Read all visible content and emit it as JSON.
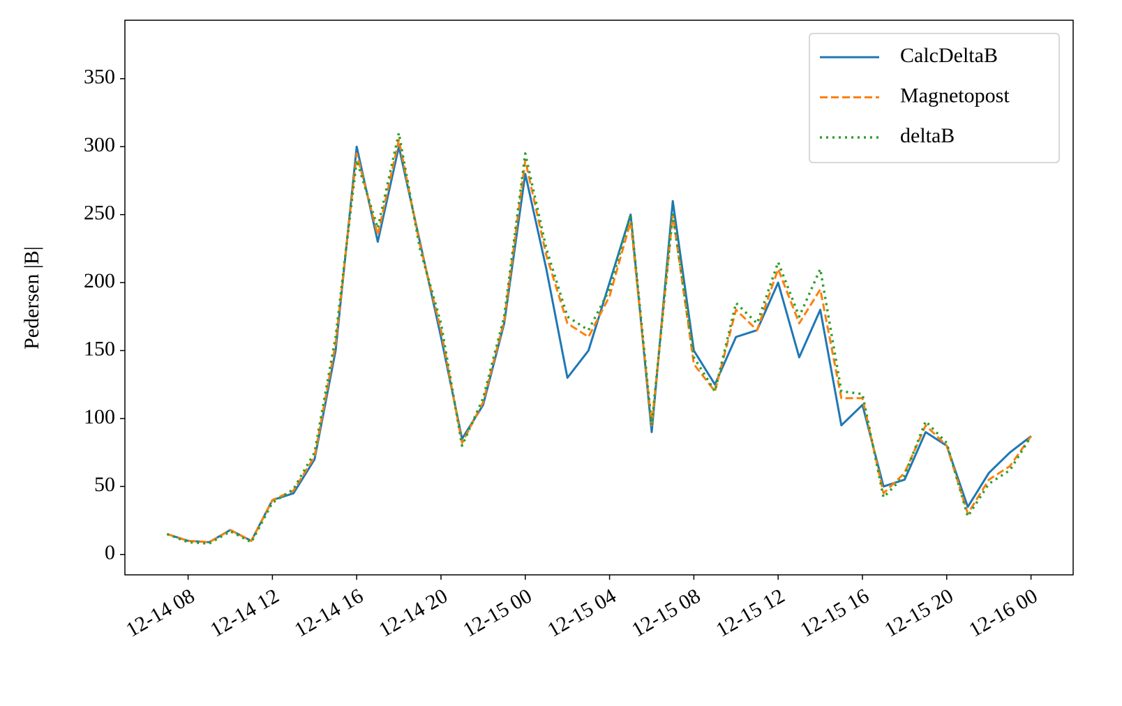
{
  "chart_data": {
    "type": "line",
    "ylabel": "Pedersen |B|",
    "x": [
      "12-14 07",
      "12-14 08",
      "12-14 09",
      "12-14 10",
      "12-14 11",
      "12-14 12",
      "12-14 13",
      "12-14 14",
      "12-14 15",
      "12-14 16",
      "12-14 17",
      "12-14 18",
      "12-14 19",
      "12-14 20",
      "12-14 21",
      "12-14 22",
      "12-14 23",
      "12-15 00",
      "12-15 01",
      "12-15 02",
      "12-15 03",
      "12-15 04",
      "12-15 05",
      "12-15 06",
      "12-15 07",
      "12-15 08",
      "12-15 09",
      "12-15 10",
      "12-15 11",
      "12-15 12",
      "12-15 13",
      "12-15 14",
      "12-15 15",
      "12-15 16",
      "12-15 17",
      "12-15 18",
      "12-15 19",
      "12-15 20",
      "12-15 21",
      "12-15 22",
      "12-15 23",
      "12-16 00"
    ],
    "series": [
      {
        "name": "CalcDeltaB",
        "color": "#1f77b4",
        "dash": "solid",
        "values": [
          15,
          10,
          9,
          18,
          10,
          40,
          45,
          70,
          150,
          300,
          230,
          300,
          230,
          160,
          85,
          110,
          170,
          280,
          210,
          130,
          150,
          200,
          250,
          90,
          260,
          150,
          125,
          160,
          165,
          200,
          145,
          180,
          95,
          110,
          50,
          55,
          90,
          80,
          35,
          60,
          75,
          87
        ]
      },
      {
        "name": "Magnetopost",
        "color": "#ff7f0e",
        "dash": "dashed",
        "values": [
          15,
          10,
          9,
          18,
          10,
          40,
          47,
          72,
          155,
          295,
          235,
          305,
          228,
          165,
          82,
          112,
          172,
          290,
          220,
          170,
          160,
          190,
          245,
          95,
          250,
          140,
          120,
          180,
          165,
          210,
          170,
          195,
          115,
          115,
          45,
          60,
          95,
          80,
          30,
          55,
          65,
          87
        ]
      },
      {
        "name": "deltaB",
        "color": "#2ca02c",
        "dash": "dotted",
        "values": [
          15,
          9,
          8,
          17,
          9,
          38,
          48,
          75,
          160,
          290,
          240,
          310,
          225,
          170,
          80,
          115,
          175,
          295,
          225,
          175,
          165,
          195,
          250,
          95,
          250,
          145,
          120,
          185,
          170,
          215,
          175,
          210,
          120,
          118,
          42,
          58,
          98,
          82,
          28,
          52,
          62,
          87
        ]
      }
    ],
    "xlim": [
      "12-14 05",
      "12-16 02"
    ],
    "xticks": [
      "12-14 08",
      "12-14 12",
      "12-14 16",
      "12-14 20",
      "12-15 00",
      "12-15 04",
      "12-15 08",
      "12-15 12",
      "12-15 16",
      "12-15 20",
      "12-16 00"
    ],
    "ylim": [
      -15,
      393
    ],
    "yticks": [
      0,
      50,
      100,
      150,
      200,
      250,
      300,
      350
    ],
    "legend": "upper right"
  }
}
